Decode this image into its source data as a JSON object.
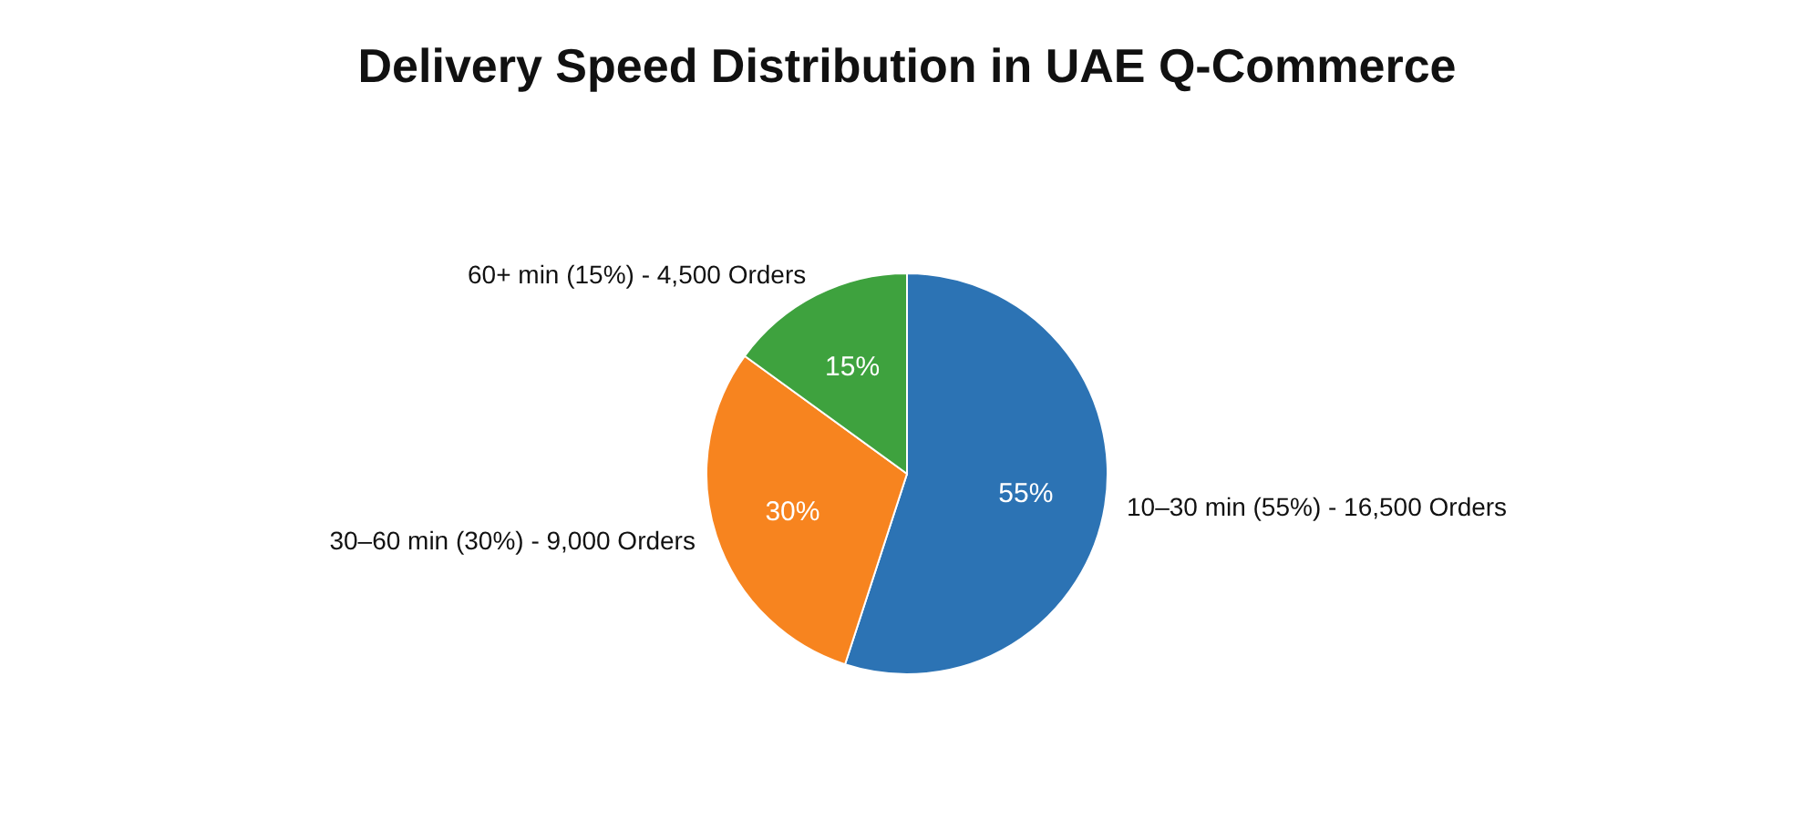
{
  "chart_data": {
    "type": "pie",
    "title": "Delivery Speed Distribution in UAE Q-Commerce",
    "categories": [
      "10–30 min (55%) - 16,500 Orders",
      "30–60 min (30%) - 9,000 Orders",
      "60+ min (15%) - 4,500 Orders"
    ],
    "values": [
      55,
      30,
      15
    ],
    "value_labels": [
      "55%",
      "30%",
      "15%"
    ],
    "colors": [
      "#2c73b4",
      "#f7841f",
      "#3ea23e"
    ],
    "legend": false
  }
}
